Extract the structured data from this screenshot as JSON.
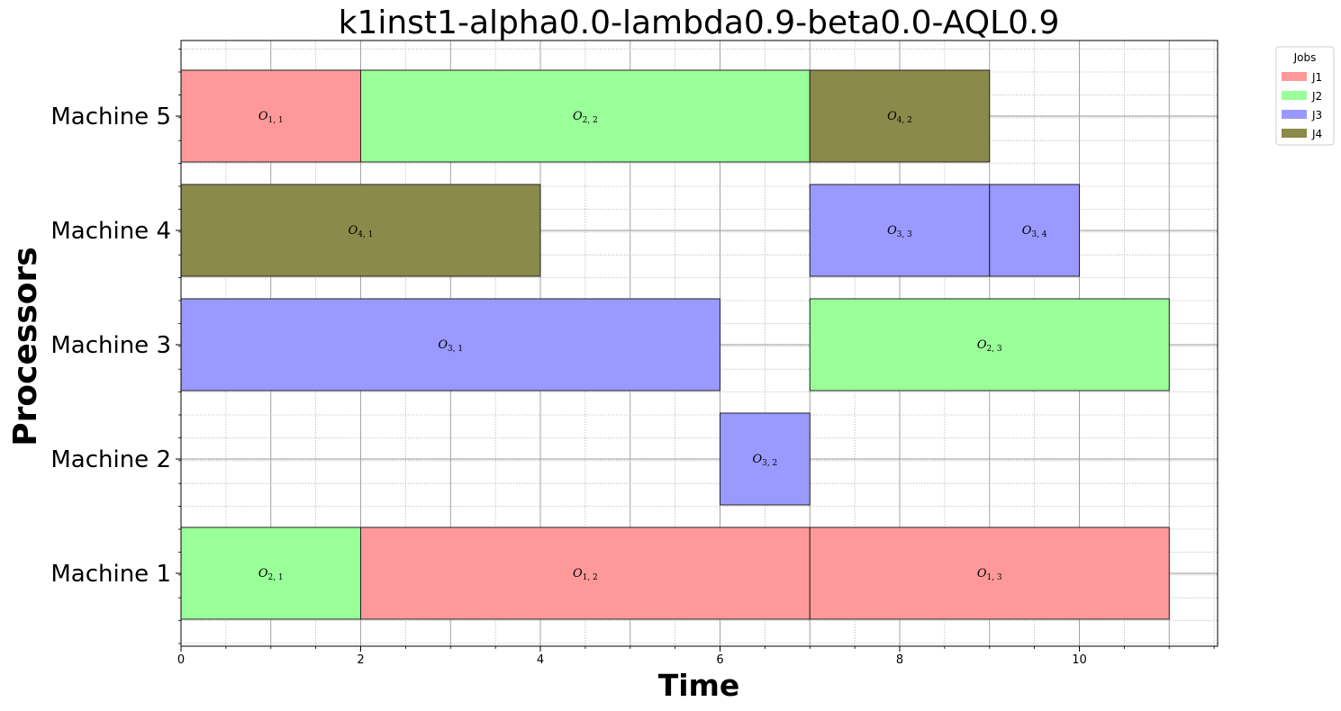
{
  "chart_data": {
    "type": "gantt",
    "title": "k1inst1-alpha0.0-lambda0.9-beta0.0-AQL0.9",
    "xlabel": "Time",
    "ylabel": "Processors",
    "xlim": [
      0,
      11.55
    ],
    "x_ticks": [
      0,
      2,
      4,
      6,
      8,
      10
    ],
    "grid": true,
    "legend_position": "outside-top-right",
    "legend_title": "Jobs",
    "machines": [
      "Machine 1",
      "Machine 2",
      "Machine 3",
      "Machine 4",
      "Machine 5"
    ],
    "jobs": [
      {
        "name": "J1",
        "color": "#ff9999"
      },
      {
        "name": "J2",
        "color": "#99ff99"
      },
      {
        "name": "J3",
        "color": "#9999ff"
      },
      {
        "name": "J4",
        "color": "#8a8a4a"
      }
    ],
    "operations": [
      {
        "machine": "Machine 5",
        "job": "J1",
        "start": 0,
        "end": 2,
        "label_main": "O",
        "label_sub": "1, 1"
      },
      {
        "machine": "Machine 5",
        "job": "J2",
        "start": 2,
        "end": 7,
        "label_main": "O",
        "label_sub": "2, 2"
      },
      {
        "machine": "Machine 5",
        "job": "J4",
        "start": 7,
        "end": 9,
        "label_main": "O",
        "label_sub": "4, 2"
      },
      {
        "machine": "Machine 4",
        "job": "J4",
        "start": 0,
        "end": 4,
        "label_main": "O",
        "label_sub": "4, 1"
      },
      {
        "machine": "Machine 4",
        "job": "J3",
        "start": 7,
        "end": 9,
        "label_main": "O",
        "label_sub": "3, 3"
      },
      {
        "machine": "Machine 4",
        "job": "J3",
        "start": 9,
        "end": 10,
        "label_main": "O",
        "label_sub": "3, 4"
      },
      {
        "machine": "Machine 3",
        "job": "J3",
        "start": 0,
        "end": 6,
        "label_main": "O",
        "label_sub": "3, 1"
      },
      {
        "machine": "Machine 3",
        "job": "J2",
        "start": 7,
        "end": 11,
        "label_main": "O",
        "label_sub": "2, 3"
      },
      {
        "machine": "Machine 2",
        "job": "J3",
        "start": 6,
        "end": 7,
        "label_main": "O",
        "label_sub": "3, 2"
      },
      {
        "machine": "Machine 1",
        "job": "J2",
        "start": 0,
        "end": 2,
        "label_main": "O",
        "label_sub": "2, 1"
      },
      {
        "machine": "Machine 1",
        "job": "J1",
        "start": 2,
        "end": 7,
        "label_main": "O",
        "label_sub": "1, 2"
      },
      {
        "machine": "Machine 1",
        "job": "J1",
        "start": 7,
        "end": 11,
        "label_main": "O",
        "label_sub": "1, 3"
      }
    ]
  }
}
